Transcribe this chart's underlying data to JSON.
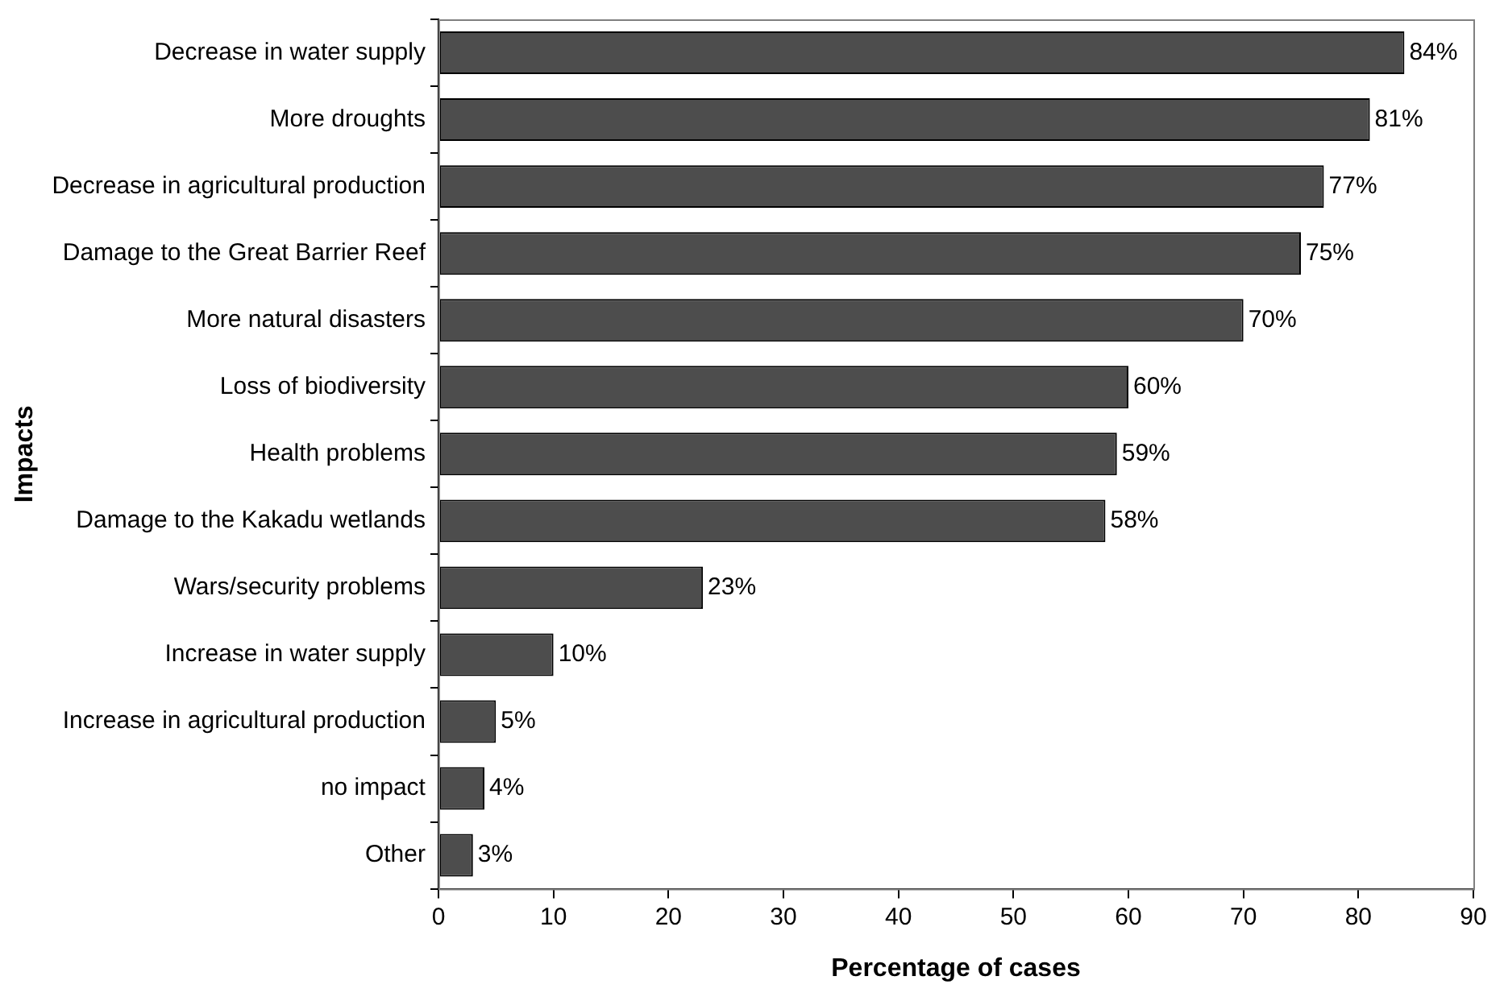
{
  "chart_data": {
    "type": "bar",
    "orientation": "horizontal",
    "xlabel": "Percentage of cases",
    "ylabel": "Impacts",
    "categories": [
      "Decrease in water supply",
      "More droughts",
      "Decrease in agricultural production",
      "Damage to the Great Barrier Reef",
      "More natural disasters",
      "Loss of biodiversity",
      "Health problems",
      "Damage to the Kakadu wetlands",
      "Wars/security problems",
      "Increase in water supply",
      "Increase in agricultural production",
      "no impact",
      "Other"
    ],
    "values": [
      84,
      81,
      77,
      75,
      70,
      60,
      59,
      58,
      23,
      10,
      5,
      4,
      3
    ],
    "value_labels": [
      "84%",
      "81%",
      "77%",
      "75%",
      "70%",
      "60%",
      "59%",
      "58%",
      "23%",
      "10%",
      "5%",
      "4%",
      "3%"
    ],
    "color": "#4d4d4d",
    "xlim": [
      0,
      90
    ],
    "xticks": [
      0,
      10,
      20,
      30,
      40,
      50,
      60,
      70,
      80,
      90
    ]
  }
}
